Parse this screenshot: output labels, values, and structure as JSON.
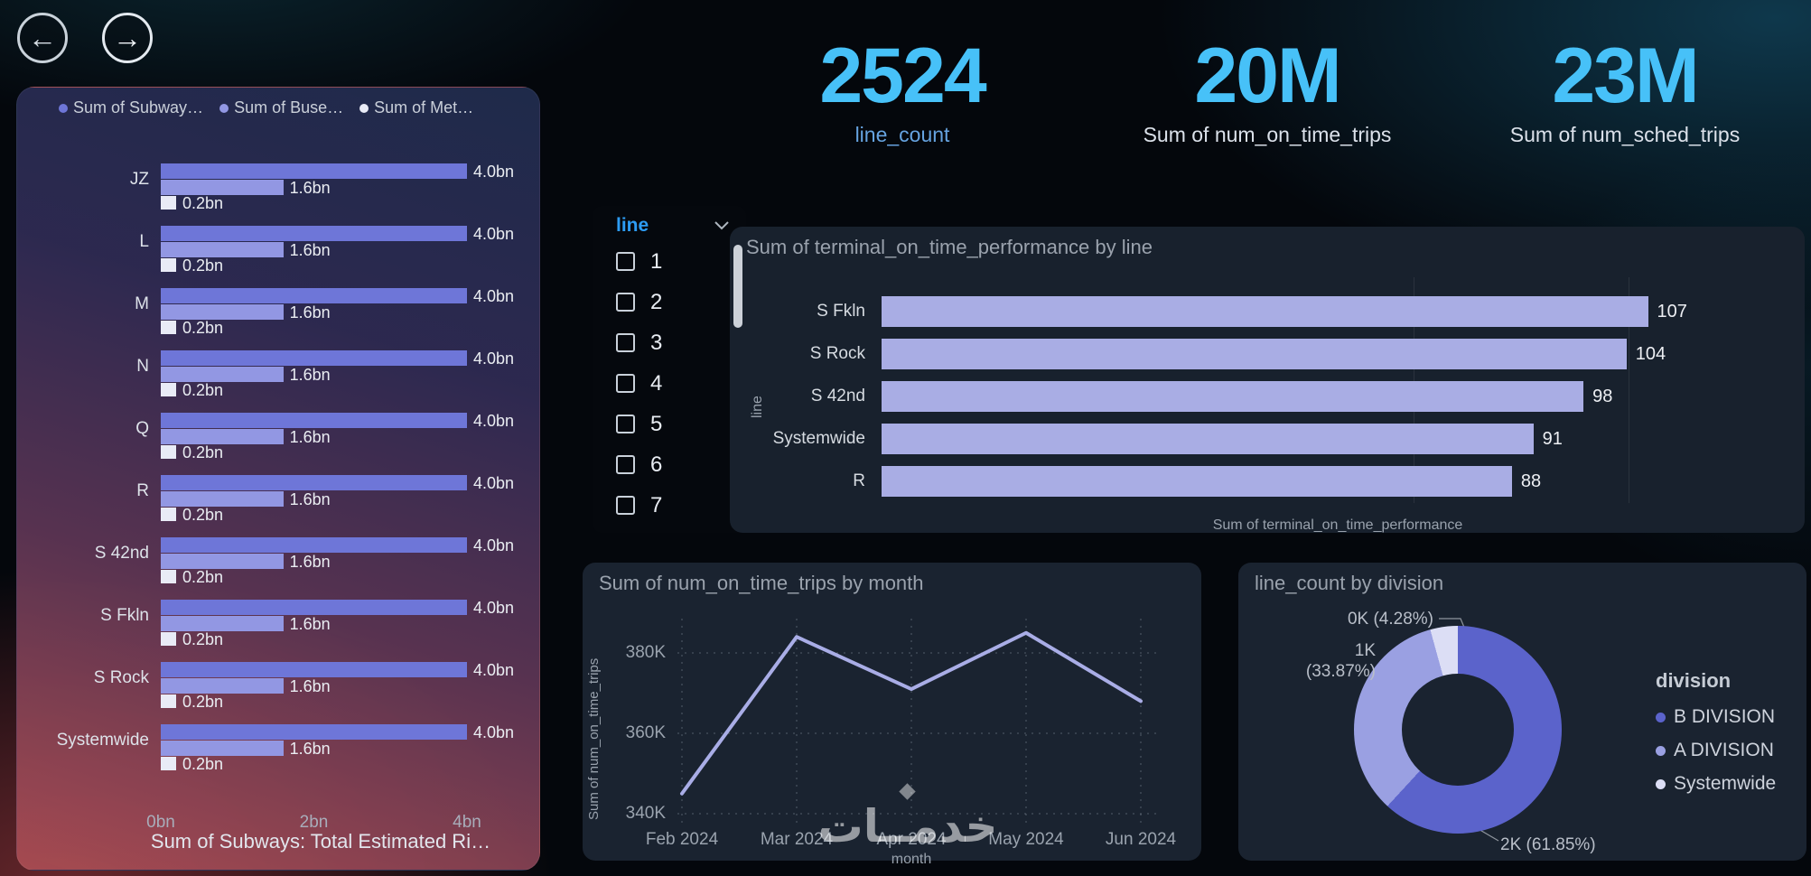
{
  "nav": {
    "back_icon": "←",
    "forward_icon": "→"
  },
  "watermark": "خدمــات",
  "kpis": [
    {
      "value": "2524",
      "label": "line_count",
      "label_color": "#66a3e0",
      "value_color": "#47c1f8"
    },
    {
      "value": "20M",
      "label": "Sum of num_on_time_trips",
      "label_color": "#dbe1ea",
      "value_color": "#47c1f8"
    },
    {
      "value": "23M",
      "label": "Sum of num_sched_trips",
      "label_color": "#dbe1ea",
      "value_color": "#47c1f8"
    }
  ],
  "slicer": {
    "title": "line",
    "options": [
      "1",
      "2",
      "3",
      "4",
      "5",
      "6",
      "7"
    ]
  },
  "chart_data": [
    {
      "id": "ridership",
      "type": "bar",
      "orientation": "horizontal",
      "title": "Sum of Subways: Total Estimated Ri…",
      "categories": [
        "JZ",
        "L",
        "M",
        "N",
        "Q",
        "R",
        "S 42nd",
        "S Fkln",
        "S Rock",
        "Systemwide"
      ],
      "series": [
        {
          "name": "Sum of Subway…",
          "color": "#6e76d8",
          "values_bn": [
            4.0,
            4.0,
            4.0,
            4.0,
            4.0,
            4.0,
            4.0,
            4.0,
            4.0,
            4.0
          ],
          "value_labels": [
            "4.0bn",
            "4.0bn",
            "4.0bn",
            "4.0bn",
            "4.0bn",
            "4.0bn",
            "4.0bn",
            "4.0bn",
            "4.0bn",
            "4.0bn"
          ]
        },
        {
          "name": "Sum of Buse…",
          "color": "#9297e3",
          "values_bn": [
            1.6,
            1.6,
            1.6,
            1.6,
            1.6,
            1.6,
            1.6,
            1.6,
            1.6,
            1.6
          ],
          "value_labels": [
            "1.6bn",
            "1.6bn",
            "1.6bn",
            "1.6bn",
            "1.6bn",
            "1.6bn",
            "1.6bn",
            "1.6bn",
            "1.6bn",
            "1.6bn"
          ]
        },
        {
          "name": "Sum of Met…",
          "color": "#e9ebf6",
          "values_bn": [
            0.2,
            0.2,
            0.2,
            0.2,
            0.2,
            0.2,
            0.2,
            0.2,
            0.2,
            0.2
          ],
          "value_labels": [
            "0.2bn",
            "0.2bn",
            "0.2bn",
            "0.2bn",
            "0.2bn",
            "0.2bn",
            "0.2bn",
            "0.2bn",
            "0.2bn",
            "0.2bn"
          ]
        }
      ],
      "xticks": [
        "0bn",
        "2bn",
        "4bn"
      ],
      "xlim_bn": [
        0,
        4
      ],
      "legend_position": "top"
    },
    {
      "id": "terminal",
      "type": "bar",
      "orientation": "horizontal",
      "title": "Sum of terminal_on_time_performance by line",
      "categories": [
        "S Fkln",
        "S Rock",
        "S 42nd",
        "Systemwide",
        "R"
      ],
      "values": [
        107,
        104,
        98,
        91,
        88
      ],
      "xlabel": "Sum of terminal_on_time_performance",
      "ylabel": "line",
      "xlim": [
        0,
        110
      ],
      "bar_color": "#a9ade4"
    },
    {
      "id": "trips",
      "type": "line",
      "title": "Sum of num_on_time_trips by month",
      "x": [
        "Feb 2024",
        "Mar 2024",
        "Apr 2024",
        "May 2024",
        "Jun 2024"
      ],
      "values": [
        345000,
        384000,
        371000,
        385000,
        368000
      ],
      "yticks": [
        {
          "label": "380K",
          "value": 380000
        },
        {
          "label": "360K",
          "value": 360000
        },
        {
          "label": "340K",
          "value": 340000
        }
      ],
      "ylim": [
        340000,
        390000
      ],
      "xlabel": "month",
      "ylabel": "Sum of num_on_time_trips",
      "line_color": "#a9ade6",
      "grid": "dotted"
    },
    {
      "id": "division",
      "type": "pie",
      "title": "line_count by division",
      "legend_title": "division",
      "slices": [
        {
          "name": "B DIVISION",
          "percent": 61.85,
          "callout": "2K (61.85%)",
          "color": "#5b63cb"
        },
        {
          "name": "A DIVISION",
          "percent": 33.87,
          "callout": "1K (33.87%)",
          "color": "#9aa0e2"
        },
        {
          "name": "Systemwide",
          "percent": 4.28,
          "callout": "0K (4.28%)",
          "color": "#dcdef5"
        }
      ],
      "legend_position": "right"
    }
  ]
}
